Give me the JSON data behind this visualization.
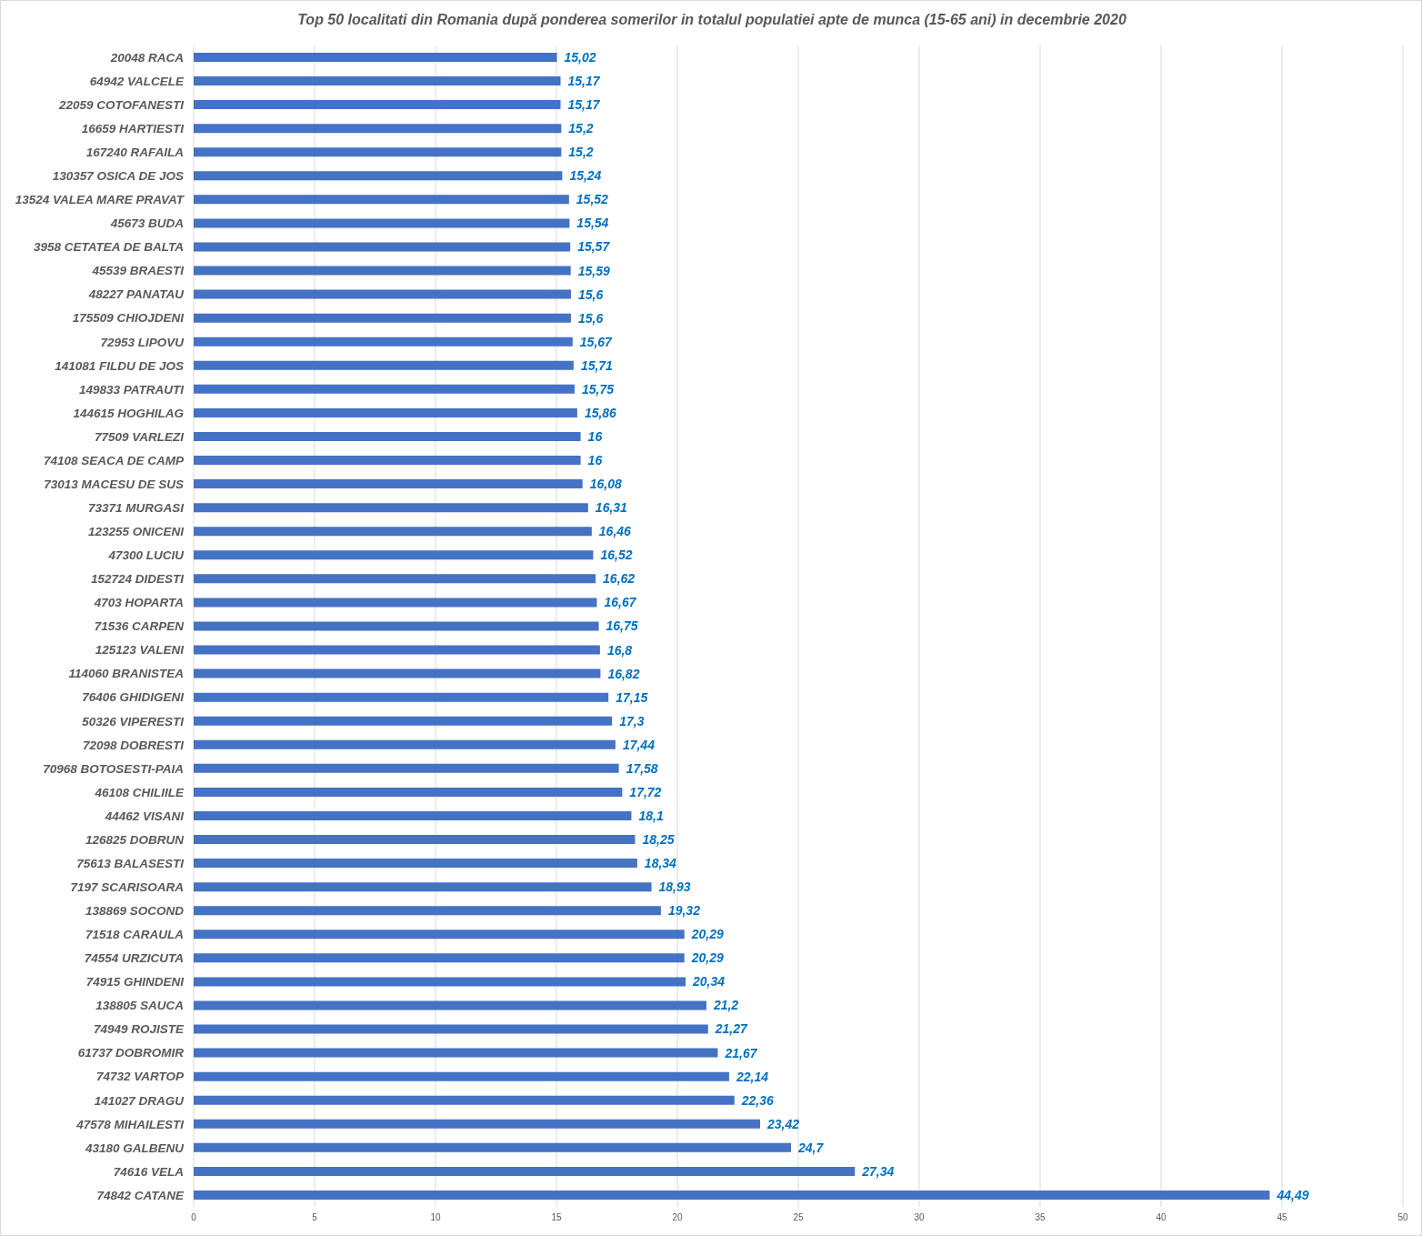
{
  "chart_data": {
    "type": "bar",
    "orientation": "horizontal",
    "title": "Top 50 localitati din Romania după ponderea somerilor in totalul populatiei apte de munca (15-65 ani) in decembrie 2020",
    "categories": [
      "20048 RACA",
      "64942 VALCELE",
      "22059 COTOFANESTI",
      "16659 HARTIESTI",
      "167240 RAFAILA",
      "130357 OSICA DE JOS",
      "13524 VALEA MARE PRAVAT",
      "45673 BUDA",
      "3958 CETATEA DE BALTA",
      "45539 BRAESTI",
      "48227 PANATAU",
      "175509 CHIOJDENI",
      "72953 LIPOVU",
      "141081 FILDU DE JOS",
      "149833 PATRAUTI",
      "144615 HOGHILAG",
      "77509 VARLEZI",
      "74108 SEACA DE CAMP",
      "73013 MACESU DE SUS",
      "73371 MURGASI",
      "123255 ONICENI",
      "47300 LUCIU",
      "152724 DIDESTI",
      "4703 HOPARTA",
      "71536 CARPEN",
      "125123 VALENI",
      "114060 BRANISTEA",
      "76406 GHIDIGENI",
      "50326 VIPERESTI",
      "72098 DOBRESTI",
      "70968 BOTOSESTI-PAIA",
      "46108 CHILIILE",
      "44462 VISANI",
      "126825 DOBRUN",
      "75613 BALASESTI",
      "7197 SCARISOARA",
      "138869 SOCOND",
      "71518 CARAULA",
      "74554 URZICUTA",
      "74915 GHINDENI",
      "138805 SAUCA",
      "74949 ROJISTE",
      "61737 DOBROMIR",
      "74732 VARTOP",
      "141027 DRAGU",
      "47578 MIHAILESTI",
      "43180 GALBENU",
      "74616 VELA",
      "74842 CATANE"
    ],
    "values": [
      15.02,
      15.17,
      15.17,
      15.2,
      15.2,
      15.24,
      15.52,
      15.54,
      15.57,
      15.59,
      15.6,
      15.6,
      15.67,
      15.71,
      15.75,
      15.86,
      16,
      16,
      16.08,
      16.31,
      16.46,
      16.52,
      16.62,
      16.67,
      16.75,
      16.8,
      16.82,
      17.15,
      17.3,
      17.44,
      17.58,
      17.72,
      18.1,
      18.25,
      18.34,
      18.93,
      19.32,
      20.29,
      20.29,
      20.34,
      21.2,
      21.27,
      21.67,
      22.14,
      22.36,
      23.42,
      24.7,
      27.34,
      44.49
    ],
    "value_labels": [
      "15,02",
      "15,17",
      "15,17",
      "15,2",
      "15,2",
      "15,24",
      "15,52",
      "15,54",
      "15,57",
      "15,59",
      "15,6",
      "15,6",
      "15,67",
      "15,71",
      "15,75",
      "15,86",
      "16",
      "16",
      "16,08",
      "16,31",
      "16,46",
      "16,52",
      "16,62",
      "16,67",
      "16,75",
      "16,8",
      "16,82",
      "17,15",
      "17,3",
      "17,44",
      "17,58",
      "17,72",
      "18,1",
      "18,25",
      "18,34",
      "18,93",
      "19,32",
      "20,29",
      "20,29",
      "20,34",
      "21,2",
      "21,27",
      "21,67",
      "22,14",
      "22,36",
      "23,42",
      "24,7",
      "27,34",
      "44,49"
    ],
    "color": "#4472c4",
    "xlim": [
      0,
      50
    ],
    "xticks": [
      0,
      5,
      10,
      15,
      20,
      25,
      30,
      35,
      40,
      45,
      50
    ],
    "grid": "x"
  }
}
